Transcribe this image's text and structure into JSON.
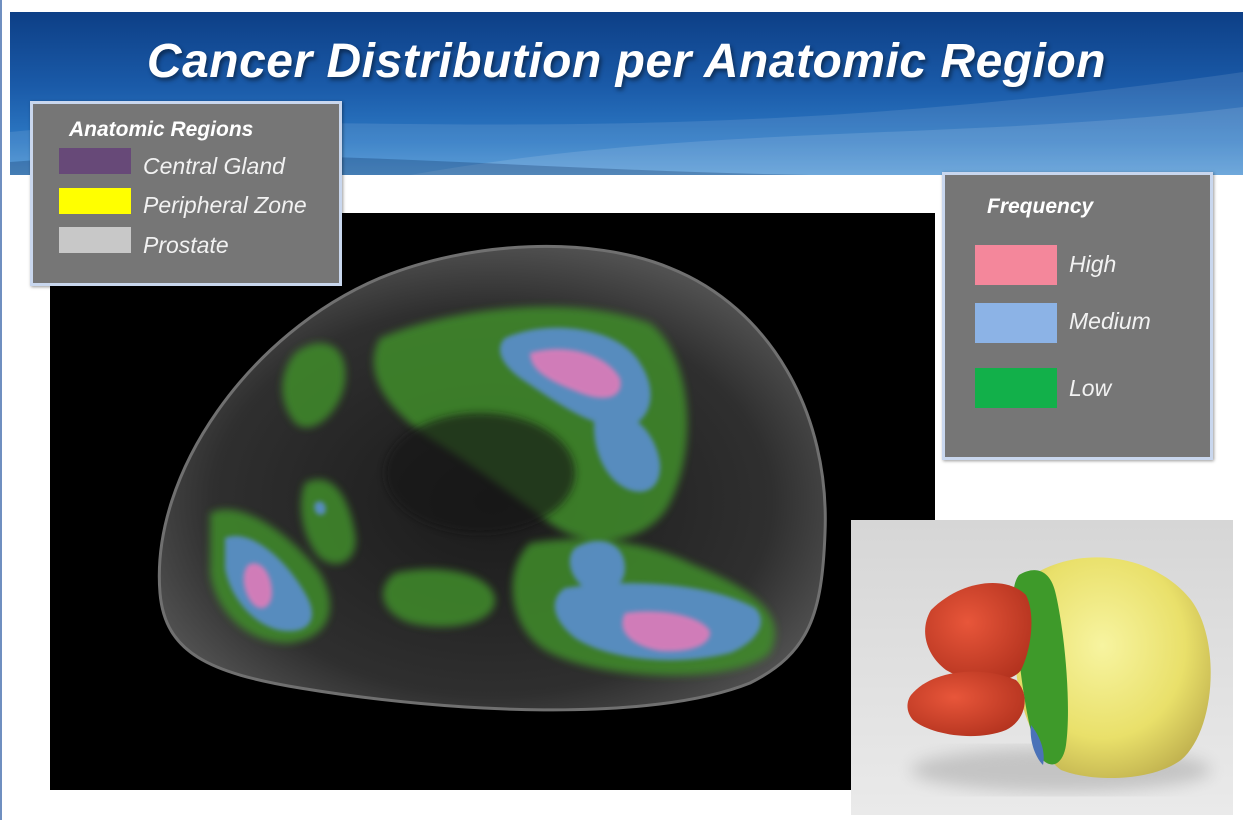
{
  "title": "Cancer Distribution per Anatomic Region",
  "regions_legend": {
    "title": "Anatomic Regions",
    "items": [
      {
        "label": "Central Gland",
        "color": "#674978"
      },
      {
        "label": "Peripheral Zone",
        "color": "#ffff00"
      },
      {
        "label": "Prostate",
        "color": "#c8c8c8"
      }
    ]
  },
  "frequency_legend": {
    "title": "Frequency",
    "items": [
      {
        "label": "High",
        "color": "#f4879b"
      },
      {
        "label": "Medium",
        "color": "#8cb3e6"
      },
      {
        "label": "Low",
        "color": "#12b04a"
      }
    ]
  },
  "colors": {
    "header_dark": "#0d3f86",
    "header_light": "#4a92d2",
    "panel_gray": "#767676",
    "panel_border": "#c9d7ee"
  }
}
